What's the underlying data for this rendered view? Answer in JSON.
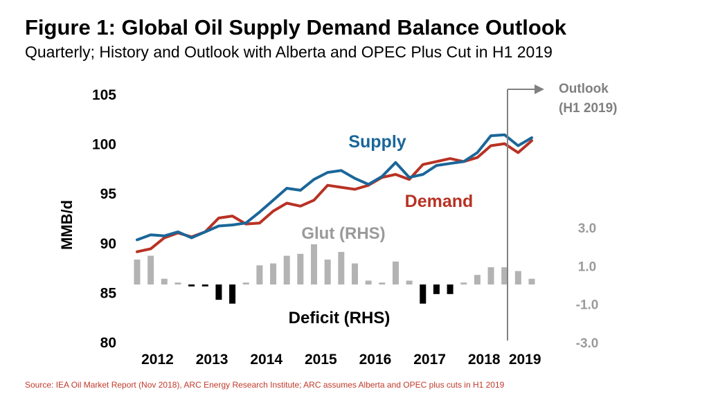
{
  "title": "Figure 1: Global Oil Supply Demand Balance Outlook",
  "subtitle": "Quarterly; History and Outlook with Alberta and OPEC Plus Cut in H1 2019",
  "source": "Source: IEA Oil Market Report (Nov 2018), ARC Energy Research Institute; ARC assumes Alberta and OPEC plus cuts in H1 2019",
  "colors": {
    "supply": "#1a6699",
    "demand": "#b83224",
    "glut": "#b3b3b3",
    "deficit": "#000000",
    "outlook": "#808080",
    "label_gray": "#9a9a9a"
  },
  "chart_data": {
    "type": "line",
    "ylabel": "MMB/d",
    "ylim": [
      80,
      105
    ],
    "yticks": [
      "80",
      "85",
      "90",
      "95",
      "100",
      "105"
    ],
    "y2lim": [
      -3.0,
      3.0
    ],
    "y2ticks": [
      "-3.0",
      "-1.0",
      "1.0",
      "3.0"
    ],
    "x": [
      "2012Q1",
      "2012Q2",
      "2012Q3",
      "2012Q4",
      "2013Q1",
      "2013Q2",
      "2013Q3",
      "2013Q4",
      "2014Q1",
      "2014Q2",
      "2014Q3",
      "2014Q4",
      "2015Q1",
      "2015Q2",
      "2015Q3",
      "2015Q4",
      "2016Q1",
      "2016Q2",
      "2016Q3",
      "2016Q4",
      "2017Q1",
      "2017Q2",
      "2017Q3",
      "2017Q4",
      "2018Q1",
      "2018Q2",
      "2018Q3",
      "2018Q4",
      "2019Q1",
      "2019Q2"
    ],
    "x_tick_labels": [
      "2012",
      "2013",
      "2014",
      "2015",
      "2016",
      "2017",
      "2018",
      "2019"
    ],
    "series": [
      {
        "name": "Supply",
        "values": [
          90.3,
          90.8,
          90.7,
          91.1,
          90.5,
          91.1,
          91.7,
          91.8,
          92.0,
          93.1,
          94.3,
          95.5,
          95.3,
          96.4,
          97.1,
          97.3,
          96.5,
          95.9,
          96.7,
          98.1,
          96.6,
          96.9,
          97.8,
          98.0,
          98.2,
          99.1,
          100.8,
          100.9,
          99.8,
          100.6
        ]
      },
      {
        "name": "Demand",
        "values": [
          89.1,
          89.4,
          90.5,
          91.0,
          90.6,
          91.1,
          92.5,
          92.7,
          91.9,
          92.0,
          93.2,
          94.0,
          93.7,
          94.3,
          95.8,
          95.6,
          95.4,
          95.8,
          96.6,
          96.9,
          96.4,
          97.9,
          98.2,
          98.5,
          98.2,
          98.6,
          99.8,
          100.0,
          99.1,
          100.3
        ]
      },
      {
        "name": "Glut (RHS)",
        "values": [
          1.3,
          1.5,
          0.3,
          0.1,
          -0.1,
          -0.1,
          -0.8,
          -1.0,
          0.1,
          1.0,
          1.1,
          1.5,
          1.6,
          2.1,
          1.3,
          1.7,
          1.1,
          0.2,
          0.1,
          1.2,
          0.2,
          -1.0,
          -0.5,
          -0.5,
          0.1,
          0.5,
          0.9,
          0.9,
          0.7,
          0.3
        ]
      }
    ],
    "annotations": {
      "supply": "Supply",
      "demand": "Demand",
      "glut": "Glut (RHS)",
      "deficit": "Deficit (RHS)",
      "outlook_line1": "Outlook",
      "outlook_line2": "(H1 2019)"
    }
  }
}
